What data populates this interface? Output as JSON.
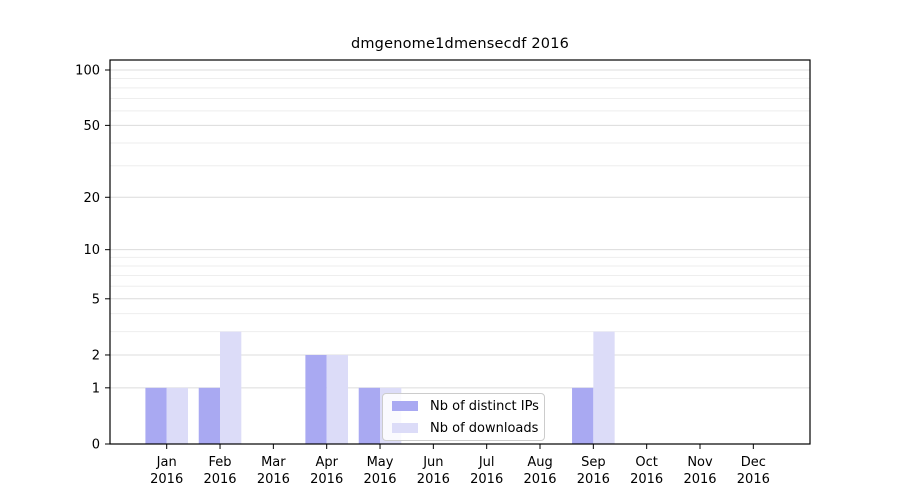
{
  "chart_data": {
    "type": "bar",
    "title": "dmgenome1dmensecdf 2016",
    "xlabel": "",
    "ylabel": "",
    "yscale": "log1p",
    "ylim": [
      0,
      113
    ],
    "yticks": [
      0,
      1,
      2,
      5,
      10,
      20,
      50,
      100
    ],
    "minor_yticks": [
      3,
      4,
      6,
      7,
      8,
      9,
      30,
      40,
      60,
      70,
      80,
      90
    ],
    "grid": "horizontal",
    "grid_major_color": "#dcdcdc",
    "grid_minor_color": "#eeeeee",
    "axis_color": "#000000",
    "legend_position": "inside-bottom-center",
    "categories": [
      {
        "month": "Jan",
        "year": "2016"
      },
      {
        "month": "Feb",
        "year": "2016"
      },
      {
        "month": "Mar",
        "year": "2016"
      },
      {
        "month": "Apr",
        "year": "2016"
      },
      {
        "month": "May",
        "year": "2016"
      },
      {
        "month": "Jun",
        "year": "2016"
      },
      {
        "month": "Jul",
        "year": "2016"
      },
      {
        "month": "Aug",
        "year": "2016"
      },
      {
        "month": "Sep",
        "year": "2016"
      },
      {
        "month": "Oct",
        "year": "2016"
      },
      {
        "month": "Nov",
        "year": "2016"
      },
      {
        "month": "Dec",
        "year": "2016"
      }
    ],
    "series": [
      {
        "name": "Nb of distinct IPs",
        "color": "#a9a9f2",
        "values": [
          1,
          1,
          0,
          2,
          1,
          0,
          0,
          0,
          1,
          0,
          0,
          0
        ]
      },
      {
        "name": "Nb of downloads",
        "color": "#dcdcf8",
        "values": [
          1,
          3,
          0,
          2,
          1,
          0,
          0,
          0,
          3,
          0,
          0,
          0
        ]
      }
    ]
  }
}
